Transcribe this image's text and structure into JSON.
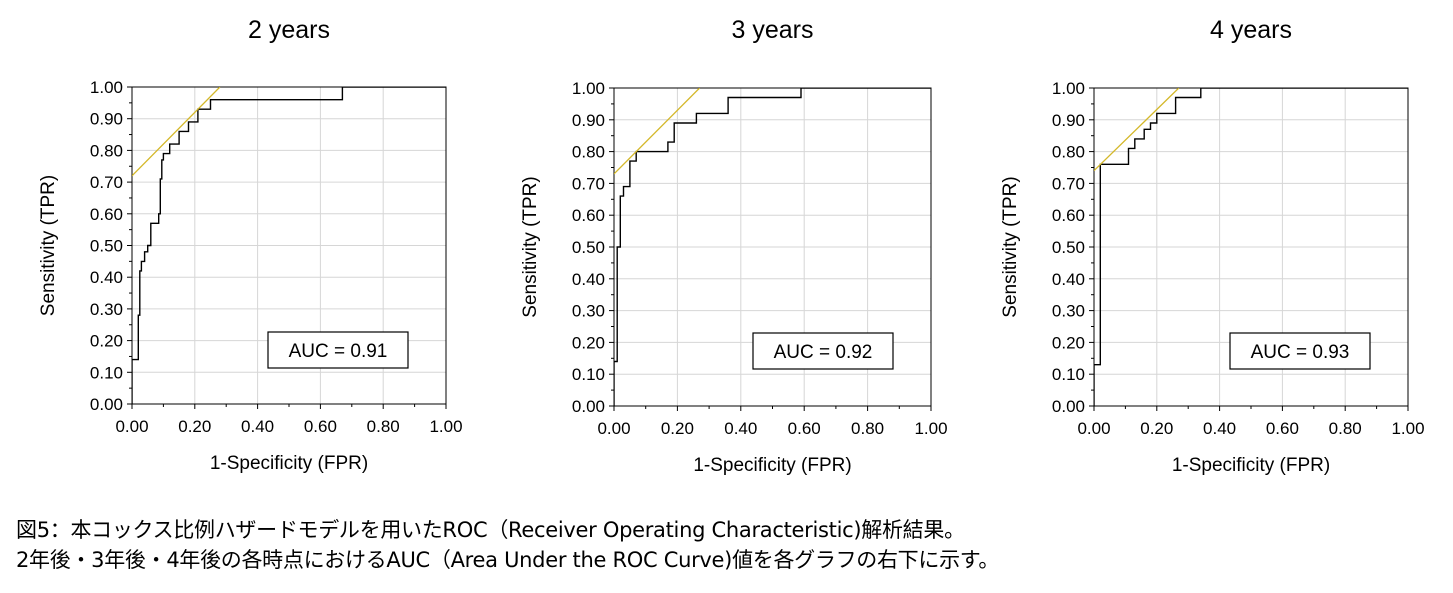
{
  "chart_data": [
    {
      "type": "line",
      "title": "2 years",
      "xlabel": "1-Specificity (FPR)",
      "ylabel": "Sensitivity (TPR)",
      "xlim": [
        0,
        1
      ],
      "ylim": [
        0,
        1
      ],
      "xticks": [
        "0.00",
        "0.20",
        "0.40",
        "0.60",
        "0.80",
        "1.00"
      ],
      "yticks": [
        "0.00",
        "0.10",
        "0.20",
        "0.30",
        "0.40",
        "0.50",
        "0.60",
        "0.70",
        "0.80",
        "0.90",
        "1.00"
      ],
      "auc_label": "AUC = 0.91",
      "grid": true,
      "series": [
        {
          "name": "ROC",
          "color": "#000000",
          "x": [
            0,
            0,
            0.02,
            0.02,
            0.025,
            0.025,
            0.03,
            0.03,
            0.04,
            0.04,
            0.05,
            0.05,
            0.06,
            0.06,
            0.07,
            0.07,
            0.085,
            0.085,
            0.09,
            0.09,
            0.095,
            0.095,
            0.1,
            0.1,
            0.12,
            0.12,
            0.15,
            0.15,
            0.18,
            0.18,
            0.21,
            0.21,
            0.25,
            0.25,
            0.67,
            0.67,
            1.0
          ],
          "y": [
            0,
            0.14,
            0.14,
            0.28,
            0.28,
            0.42,
            0.42,
            0.45,
            0.45,
            0.48,
            0.48,
            0.5,
            0.5,
            0.57,
            0.57,
            0.57,
            0.57,
            0.6,
            0.6,
            0.71,
            0.71,
            0.77,
            0.77,
            0.79,
            0.79,
            0.82,
            0.82,
            0.86,
            0.86,
            0.89,
            0.89,
            0.93,
            0.93,
            0.96,
            0.96,
            1.0,
            1.0
          ]
        },
        {
          "name": "tangent",
          "color": "#d4b82a",
          "x": [
            0,
            0.28
          ],
          "y": [
            0.72,
            1.0
          ]
        }
      ]
    },
    {
      "type": "line",
      "title": "3 years",
      "xlabel": "1-Specificity (FPR)",
      "ylabel": "Sensitivity (TPR)",
      "xlim": [
        0,
        1
      ],
      "ylim": [
        0,
        1
      ],
      "xticks": [
        "0.00",
        "0.20",
        "0.40",
        "0.60",
        "0.80",
        "1.00"
      ],
      "yticks": [
        "0.00",
        "0.10",
        "0.20",
        "0.30",
        "0.40",
        "0.50",
        "0.60",
        "0.70",
        "0.80",
        "0.90",
        "1.00"
      ],
      "auc_label": "AUC = 0.92",
      "grid": true,
      "series": [
        {
          "name": "ROC",
          "color": "#000000",
          "x": [
            0,
            0,
            0.01,
            0.01,
            0.02,
            0.02,
            0.03,
            0.03,
            0.05,
            0.05,
            0.07,
            0.07,
            0.17,
            0.17,
            0.19,
            0.19,
            0.26,
            0.26,
            0.36,
            0.36,
            0.59,
            0.59,
            1.0
          ],
          "y": [
            0,
            0.14,
            0.14,
            0.5,
            0.5,
            0.66,
            0.66,
            0.69,
            0.69,
            0.77,
            0.77,
            0.8,
            0.8,
            0.83,
            0.83,
            0.89,
            0.89,
            0.92,
            0.92,
            0.97,
            0.97,
            1.0,
            1.0
          ]
        },
        {
          "name": "tangent",
          "color": "#d4b82a",
          "x": [
            0,
            0.27
          ],
          "y": [
            0.73,
            1.0
          ]
        }
      ]
    },
    {
      "type": "line",
      "title": "4 years",
      "xlabel": "1-Specificity (FPR)",
      "ylabel": "Sensitivity (TPR)",
      "xlim": [
        0,
        1
      ],
      "ylim": [
        0,
        1
      ],
      "xticks": [
        "0.00",
        "0.20",
        "0.40",
        "0.60",
        "0.80",
        "1.00"
      ],
      "yticks": [
        "0.00",
        "0.10",
        "0.20",
        "0.30",
        "0.40",
        "0.50",
        "0.60",
        "0.70",
        "0.80",
        "0.90",
        "1.00"
      ],
      "auc_label": "AUC = 0.93",
      "grid": true,
      "series": [
        {
          "name": "ROC",
          "color": "#000000",
          "x": [
            0,
            0,
            0.02,
            0.02,
            0.11,
            0.11,
            0.13,
            0.13,
            0.16,
            0.16,
            0.18,
            0.18,
            0.2,
            0.2,
            0.26,
            0.26,
            0.34,
            0.34,
            0.61,
            0.61,
            1.0
          ],
          "y": [
            0,
            0.13,
            0.13,
            0.76,
            0.76,
            0.81,
            0.81,
            0.84,
            0.84,
            0.87,
            0.87,
            0.89,
            0.89,
            0.92,
            0.92,
            0.97,
            0.97,
            1.0,
            1.0,
            1.0,
            1.0
          ]
        },
        {
          "name": "tangent",
          "color": "#d4b82a",
          "x": [
            0,
            0.27
          ],
          "y": [
            0.74,
            1.0
          ]
        }
      ]
    }
  ],
  "caption": {
    "line1": "図5：本コックス比例ハザードモデルを用いたROC（Receiver Operating Characteristic)解析結果。",
    "line2": "2年後・3年後・4年後の各時点におけるAUC（Area Under the ROC Curve)値を各グラフの右下に示す。"
  }
}
